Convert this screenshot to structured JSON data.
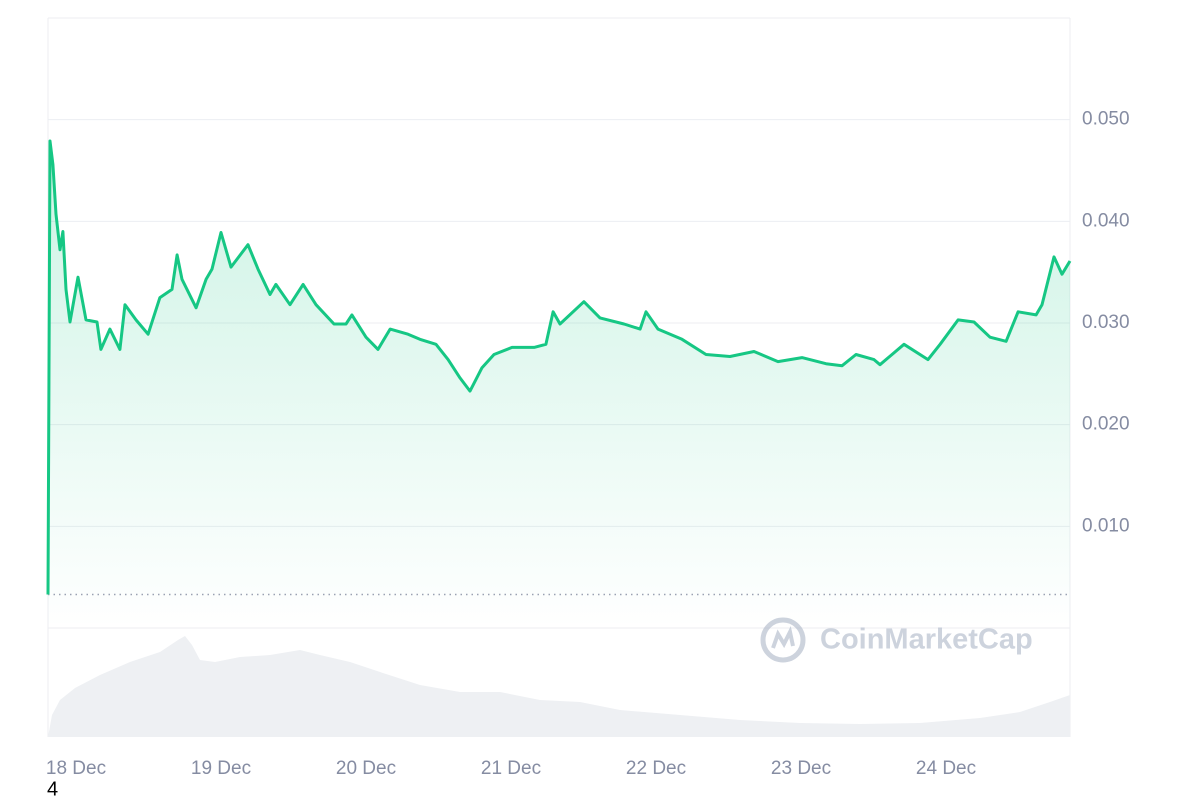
{
  "chart_data": {
    "type": "line",
    "color": "#16c784",
    "x": [
      17.807,
      17.821,
      17.841,
      17.862,
      17.89,
      17.91,
      17.931,
      17.959,
      18.014,
      18.069,
      18.145,
      18.172,
      18.234,
      18.303,
      18.338,
      18.414,
      18.497,
      18.579,
      18.662,
      18.697,
      18.731,
      18.828,
      18.897,
      18.938,
      19.0,
      19.069,
      19.186,
      19.255,
      19.338,
      19.379,
      19.476,
      19.566,
      19.655,
      19.779,
      19.862,
      19.903,
      20.0,
      20.083,
      20.166,
      20.29,
      20.372,
      20.483,
      20.566,
      20.648,
      20.717,
      20.8,
      20.883,
      21.007,
      21.159,
      21.241,
      21.29,
      21.338,
      21.503,
      21.614,
      21.779,
      21.89,
      21.931,
      22.014,
      22.179,
      22.345,
      22.51,
      22.676,
      22.841,
      23.007,
      23.172,
      23.283,
      23.379,
      23.503,
      23.545,
      23.71,
      23.876,
      23.959,
      24.083,
      24.193,
      24.303,
      24.414,
      24.497,
      24.621,
      24.662,
      24.745,
      24.8,
      24.855
    ],
    "values": [
      0.0033,
      0.0479,
      0.0456,
      0.0407,
      0.0372,
      0.039,
      0.0333,
      0.0301,
      0.0345,
      0.0303,
      0.0301,
      0.0274,
      0.0294,
      0.0274,
      0.0318,
      0.0303,
      0.0289,
      0.0325,
      0.0333,
      0.0367,
      0.0343,
      0.0315,
      0.0343,
      0.0353,
      0.0389,
      0.0355,
      0.0377,
      0.0353,
      0.0328,
      0.0338,
      0.0318,
      0.0338,
      0.0318,
      0.0299,
      0.0299,
      0.0308,
      0.0286,
      0.0274,
      0.0294,
      0.0289,
      0.0284,
      0.0279,
      0.0264,
      0.0246,
      0.0233,
      0.0256,
      0.0269,
      0.0276,
      0.0276,
      0.0279,
      0.0311,
      0.0299,
      0.0321,
      0.0305,
      0.0299,
      0.0294,
      0.0311,
      0.0294,
      0.0284,
      0.0269,
      0.0267,
      0.0272,
      0.0262,
      0.0266,
      0.026,
      0.0258,
      0.0269,
      0.0264,
      0.0259,
      0.0279,
      0.0264,
      0.0279,
      0.0303,
      0.0301,
      0.0286,
      0.0282,
      0.0311,
      0.0308,
      0.0318,
      0.0365,
      0.0348,
      0.0361
    ],
    "xlim": [
      17.807,
      24.855
    ],
    "xticks": [
      {
        "value": 18,
        "label": "18 Dec"
      },
      {
        "value": 19,
        "label": "19 Dec"
      },
      {
        "value": 20,
        "label": "20 Dec"
      },
      {
        "value": 21,
        "label": "21 Dec"
      },
      {
        "value": 22,
        "label": "22 Dec"
      },
      {
        "value": 23,
        "label": "23 Dec"
      },
      {
        "value": 24,
        "label": "24 Dec"
      }
    ],
    "ylim": [
      0,
      0.06
    ],
    "yticks": [
      {
        "value": 0.01,
        "label": "0.010"
      },
      {
        "value": 0.02,
        "label": "0.020"
      },
      {
        "value": 0.03,
        "label": "0.030"
      },
      {
        "value": 0.04,
        "label": "0.040"
      },
      {
        "value": 0.05,
        "label": "0.050"
      }
    ],
    "grid": true,
    "watermark": "CoinMarketCap",
    "footnote": "4"
  }
}
